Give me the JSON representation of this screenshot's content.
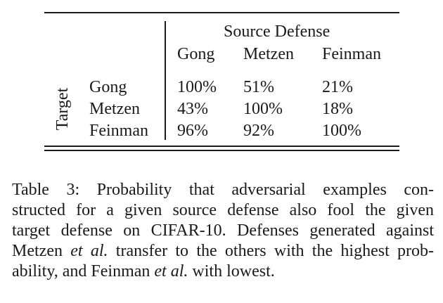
{
  "table": {
    "column_group_header": "Source Defense",
    "row_group_header": "Target",
    "columns": [
      "Gong",
      "Metzen",
      "Feinman"
    ],
    "rows": [
      {
        "label": "Gong",
        "values": [
          "100%",
          "51%",
          "21%"
        ]
      },
      {
        "label": "Metzen",
        "values": [
          "43%",
          "100%",
          "18%"
        ]
      },
      {
        "label": "Feinman",
        "values": [
          "96%",
          "92%",
          "100%"
        ]
      }
    ]
  },
  "caption": {
    "label": "Table 3:",
    "lines": [
      {
        "parts": [
          {
            "text": "Table 3:  Probability that adversarial examples con-"
          }
        ]
      },
      {
        "parts": [
          {
            "text": "structed for a given source defense also fool the given"
          }
        ]
      },
      {
        "parts": [
          {
            "text": "target defense on CIFAR-10. Defenses generated against"
          }
        ]
      },
      {
        "parts": [
          {
            "text": "Metzen "
          },
          {
            "text": "et al.",
            "italic": true
          },
          {
            "text": " transfer to the others with the highest prob-"
          }
        ]
      },
      {
        "parts": [
          {
            "text": "ability, and Feinman "
          },
          {
            "text": "et al.",
            "italic": true
          },
          {
            "text": " with lowest."
          }
        ]
      }
    ]
  }
}
